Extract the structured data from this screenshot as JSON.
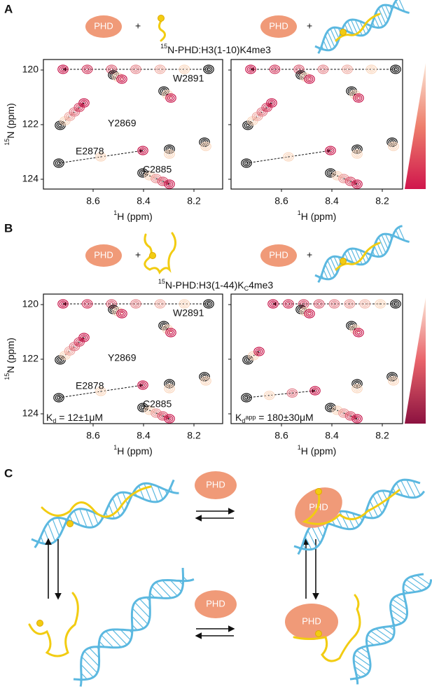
{
  "panel_a": {
    "label": "A",
    "title": {
      "sup": "15",
      "text": "N-PHD:H3(1-10)K4me3"
    },
    "reaction_left": {
      "protein": "PHD",
      "plus": "+"
    },
    "reaction_right": {
      "protein": "PHD",
      "plus": "+"
    },
    "y_axis": {
      "sup": "15",
      "text": "N (ppm)"
    },
    "y_ticks": [
      "120",
      "122",
      "124"
    ],
    "plots": [
      {
        "x_ticks": [
          "8.6",
          "8.4",
          "8.2"
        ],
        "x_axis": {
          "sup": "1",
          "text": "H (ppm)"
        }
      },
      {
        "x_ticks": [
          "8.6",
          "8.4",
          "8.2"
        ],
        "x_axis": {
          "sup": "1",
          "text": "H (ppm)"
        }
      }
    ],
    "residues": [
      "W2891",
      "Y2869",
      "E2878",
      "C2885"
    ]
  },
  "panel_b": {
    "label": "B",
    "title": {
      "sup": "15",
      "text": "N-PHD:H3(1-44)K",
      "sub": "C",
      "rest": "4me3"
    },
    "reaction_left": {
      "protein": "PHD",
      "plus": "+"
    },
    "reaction_right": {
      "protein": "PHD",
      "plus": "+"
    },
    "y_axis": {
      "sup": "15",
      "text": "N (ppm)"
    },
    "y_ticks": [
      "120",
      "122",
      "124"
    ],
    "plots": [
      {
        "x_ticks": [
          "8.6",
          "8.4",
          "8.2"
        ],
        "x_axis": {
          "sup": "1",
          "text": "H (ppm)"
        }
      },
      {
        "x_ticks": [
          "8.6",
          "8.4",
          "8.2"
        ],
        "x_axis": {
          "sup": "1",
          "text": "H (ppm)"
        }
      }
    ],
    "residues": [
      "W2891",
      "Y2869",
      "E2878",
      "C2885"
    ],
    "kd_left": {
      "symbol": "K",
      "sub": "d",
      "value": " = 12±1μM"
    },
    "kd_right": {
      "symbol": "K",
      "sub": "d",
      "sup": "app",
      "value": " = 180±30μM"
    }
  },
  "panel_c": {
    "label": "C",
    "protein_top": "PHD",
    "protein_bottom": "PHD",
    "bound_top": "PHD",
    "bound_bottom": "PHD"
  }
}
